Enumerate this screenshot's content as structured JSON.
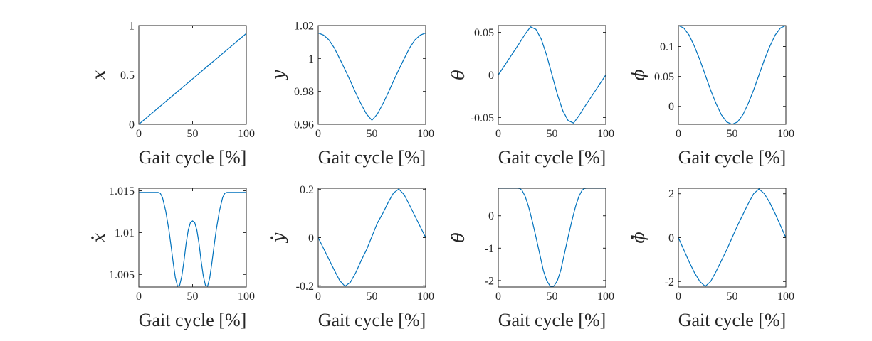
{
  "colors": {
    "series": "#0072BD",
    "axis": "#262626"
  },
  "chart_data": [
    {
      "type": "line",
      "ylabel": "x",
      "ylabel_dot": false,
      "xlabel": "Gait cycle [%]",
      "xlim": [
        0,
        100
      ],
      "ylim": [
        0,
        1
      ],
      "xticks": [
        0,
        50,
        100
      ],
      "xtick_labels": [
        "0",
        "50",
        "100"
      ],
      "yticks": [
        0,
        0.5,
        1
      ],
      "ytick_labels": [
        "0",
        "0.5",
        "1"
      ],
      "series": [
        {
          "x": [
            0,
            10,
            20,
            30,
            40,
            50,
            60,
            70,
            80,
            90,
            100
          ],
          "y": [
            0,
            0.092,
            0.184,
            0.276,
            0.368,
            0.46,
            0.552,
            0.644,
            0.736,
            0.828,
            0.92
          ]
        }
      ]
    },
    {
      "type": "line",
      "ylabel": "y",
      "ylabel_dot": false,
      "xlabel": "Gait cycle [%]",
      "xlim": [
        0,
        100
      ],
      "ylim": [
        0.96,
        1.02
      ],
      "xticks": [
        0,
        50,
        100
      ],
      "xtick_labels": [
        "0",
        "50",
        "100"
      ],
      "yticks": [
        0.96,
        0.98,
        1,
        1.02
      ],
      "ytick_labels": [
        "0.96",
        "0.98",
        "1",
        "1.02"
      ],
      "series": [
        {
          "x": [
            0,
            5,
            10,
            15,
            20,
            25,
            30,
            35,
            40,
            45,
            50,
            55,
            60,
            65,
            70,
            75,
            80,
            85,
            90,
            95,
            100
          ],
          "y": [
            1.0155,
            1.0142,
            1.0113,
            1.0064,
            0.9999,
            0.9932,
            0.9863,
            0.979,
            0.9722,
            0.9662,
            0.9625,
            0.9662,
            0.9722,
            0.979,
            0.9863,
            0.9932,
            0.9999,
            1.0064,
            1.0113,
            1.0142,
            1.0155
          ]
        }
      ]
    },
    {
      "type": "line",
      "ylabel": "θ",
      "ylabel_dot": false,
      "xlabel": "Gait cycle [%]",
      "xlim": [
        0,
        100
      ],
      "ylim": [
        -0.058,
        0.058
      ],
      "xticks": [
        0,
        50,
        100
      ],
      "xtick_labels": [
        "0",
        "50",
        "100"
      ],
      "yticks": [
        -0.05,
        0,
        0.05
      ],
      "ytick_labels": [
        "-0.05",
        "0",
        "0.05"
      ],
      "series": [
        {
          "x": [
            0,
            5,
            10,
            15,
            20,
            25,
            30,
            35,
            40,
            45,
            50,
            55,
            60,
            65,
            70,
            75,
            80,
            85,
            90,
            95,
            100
          ],
          "y": [
            0,
            0.0095,
            0.019,
            0.0285,
            0.038,
            0.048,
            0.0565,
            0.0536,
            0.042,
            0.023,
            0,
            -0.023,
            -0.042,
            -0.0536,
            -0.0565,
            -0.048,
            -0.038,
            -0.0285,
            -0.019,
            -0.0095,
            0
          ]
        }
      ]
    },
    {
      "type": "line",
      "ylabel": "ϕ",
      "ylabel_dot": false,
      "xlabel": "Gait cycle [%]",
      "xlim": [
        0,
        100
      ],
      "ylim": [
        -0.03,
        0.135
      ],
      "xticks": [
        0,
        50,
        100
      ],
      "xtick_labels": [
        "0",
        "50",
        "100"
      ],
      "yticks": [
        0,
        0.05,
        0.1
      ],
      "ytick_labels": [
        "0",
        "0.05",
        "0.1"
      ],
      "series": [
        {
          "x": [
            0,
            5,
            10,
            15,
            20,
            25,
            30,
            35,
            40,
            45,
            50,
            55,
            60,
            65,
            70,
            75,
            80,
            85,
            90,
            95,
            100
          ],
          "y": [
            0.135,
            0.131,
            0.119,
            0.1,
            0.0777,
            0.0525,
            0.0273,
            0.0049,
            -0.0141,
            -0.0261,
            -0.03,
            -0.0261,
            -0.0141,
            0.0049,
            0.0273,
            0.0525,
            0.0777,
            0.1,
            0.119,
            0.131,
            0.135
          ]
        }
      ]
    },
    {
      "type": "line",
      "ylabel": "x",
      "ylabel_dot": true,
      "xlabel": "Gait cycle [%]",
      "xlim": [
        0,
        100
      ],
      "ylim": [
        1.0035,
        1.0153
      ],
      "xticks": [
        0,
        50,
        100
      ],
      "xtick_labels": [
        "0",
        "50",
        "100"
      ],
      "yticks": [
        1.005,
        1.01,
        1.015
      ],
      "ytick_labels": [
        "1.005",
        "1.01",
        "1.015"
      ],
      "series": [
        {
          "x": [
            0,
            10,
            18,
            20,
            22,
            25,
            28,
            30,
            32,
            34,
            36,
            38,
            40,
            42,
            44,
            46,
            48,
            50,
            52,
            54,
            56,
            58,
            60,
            62,
            64,
            66,
            68,
            70,
            72,
            75,
            78,
            80,
            82,
            90,
            100
          ],
          "y": [
            1.0148,
            1.0148,
            1.0148,
            1.0147,
            1.0142,
            1.0126,
            1.0103,
            1.0084,
            1.0064,
            1.0046,
            1.0036,
            1.0037,
            1.0048,
            1.0066,
            1.0087,
            1.0103,
            1.0112,
            1.0114,
            1.0112,
            1.0103,
            1.0087,
            1.0066,
            1.0048,
            1.0037,
            1.0036,
            1.0046,
            1.0064,
            1.0084,
            1.0103,
            1.0126,
            1.0142,
            1.0147,
            1.0148,
            1.0148,
            1.0148
          ]
        }
      ]
    },
    {
      "type": "line",
      "ylabel": "y",
      "ylabel_dot": true,
      "xlabel": "Gait cycle [%]",
      "xlim": [
        0,
        100
      ],
      "ylim": [
        -0.205,
        0.205
      ],
      "xticks": [
        0,
        50,
        100
      ],
      "xtick_labels": [
        "0",
        "50",
        "100"
      ],
      "yticks": [
        -0.2,
        0,
        0.2
      ],
      "ytick_labels": [
        "-0.2",
        "0",
        "0.2"
      ],
      "series": [
        {
          "x": [
            0,
            5,
            10,
            15,
            20,
            25,
            30,
            35,
            40,
            45,
            50,
            55,
            60,
            65,
            70,
            75,
            80,
            85,
            90,
            95,
            100
          ],
          "y": [
            0,
            -0.045,
            -0.09,
            -0.135,
            -0.178,
            -0.202,
            -0.185,
            -0.145,
            -0.095,
            -0.05,
            0.005,
            0.06,
            0.1,
            0.145,
            0.185,
            0.202,
            0.178,
            0.135,
            0.09,
            0.045,
            0
          ]
        }
      ]
    },
    {
      "type": "line",
      "ylabel": "θ",
      "ylabel_dot": true,
      "xlabel": "Gait cycle [%]",
      "xlim": [
        0,
        100
      ],
      "ylim": [
        -2.2,
        0.85
      ],
      "xticks": [
        0,
        50,
        100
      ],
      "xtick_labels": [
        "0",
        "50",
        "100"
      ],
      "yticks": [
        -2,
        -1,
        0
      ],
      "ytick_labels": [
        "-2",
        "-1",
        "0"
      ],
      "series": [
        {
          "x": [
            0,
            10,
            18,
            20,
            22,
            25,
            28,
            30,
            32,
            35,
            38,
            40,
            42,
            45,
            48,
            50,
            52,
            55,
            58,
            60,
            62,
            65,
            68,
            70,
            72,
            75,
            78,
            80,
            82,
            90,
            100
          ],
          "y": [
            0.85,
            0.85,
            0.85,
            0.84,
            0.79,
            0.6,
            0.3,
            0.05,
            -0.22,
            -0.65,
            -1.1,
            -1.4,
            -1.7,
            -2.0,
            -2.16,
            -2.2,
            -2.16,
            -2.0,
            -1.7,
            -1.4,
            -1.1,
            -0.65,
            -0.22,
            0.05,
            0.3,
            0.6,
            0.79,
            0.84,
            0.85,
            0.85,
            0.85
          ]
        }
      ]
    },
    {
      "type": "line",
      "ylabel": "ϕ",
      "ylabel_dot": true,
      "xlabel": "Gait cycle [%]",
      "xlim": [
        0,
        100
      ],
      "ylim": [
        -2.25,
        2.25
      ],
      "xticks": [
        0,
        50,
        100
      ],
      "xtick_labels": [
        "0",
        "50",
        "100"
      ],
      "yticks": [
        -2,
        0,
        2
      ],
      "ytick_labels": [
        "-2",
        "0",
        "2"
      ],
      "series": [
        {
          "x": [
            0,
            5,
            10,
            15,
            20,
            25,
            30,
            35,
            40,
            45,
            50,
            55,
            60,
            65,
            70,
            75,
            80,
            85,
            90,
            95,
            100
          ],
          "y": [
            0,
            -0.55,
            -1.1,
            -1.6,
            -2.0,
            -2.22,
            -2.0,
            -1.55,
            -1.05,
            -0.55,
            0,
            0.55,
            1.05,
            1.55,
            2.0,
            2.22,
            2.0,
            1.6,
            1.1,
            0.55,
            0
          ]
        }
      ]
    }
  ]
}
